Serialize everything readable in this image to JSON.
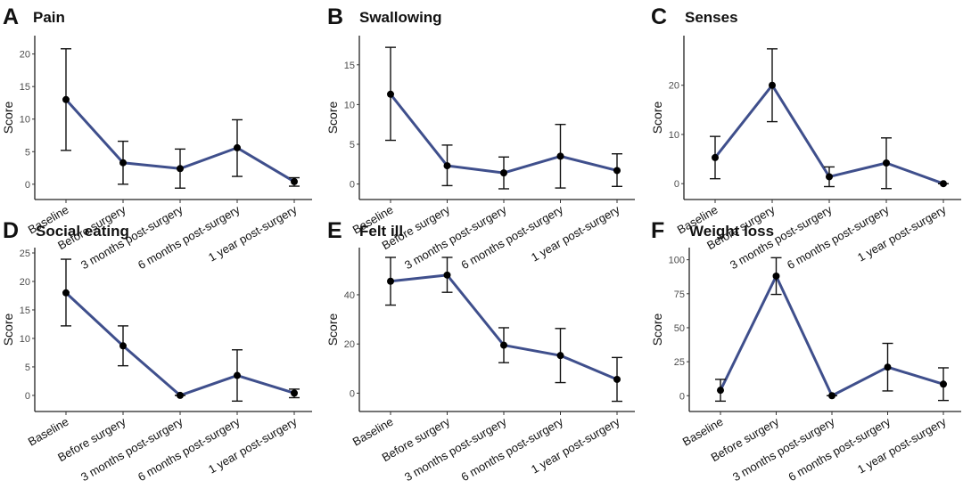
{
  "figure": {
    "line_color": "#3f4f8c",
    "point_color": "#000000",
    "errorbar_color": "#111111"
  },
  "chart_data": [
    {
      "type": "line",
      "panel": "A",
      "title": "Pain",
      "xlabel": "",
      "ylabel": "Score",
      "categories": [
        "Baseline",
        "Before surgery",
        "3 months post-surgery",
        "6 months post-surgery",
        "1 year post-surgery"
      ],
      "values": [
        13.0,
        3.3,
        2.4,
        5.6,
        0.4
      ],
      "error_low": [
        5.2,
        0.0,
        -0.6,
        1.2,
        -0.3
      ],
      "error_high": [
        20.8,
        6.6,
        5.4,
        9.9,
        1.0
      ],
      "yticks": [
        0,
        5,
        10,
        15,
        20
      ],
      "ylim": [
        -1.8,
        22
      ]
    },
    {
      "type": "line",
      "panel": "B",
      "title": "Swallowing",
      "xlabel": "",
      "ylabel": "Score",
      "categories": [
        "Baseline",
        "Before surgery",
        "3 months post-surgery",
        "6 months post-surgery",
        "1 year post-surgery"
      ],
      "values": [
        11.3,
        2.3,
        1.4,
        3.5,
        1.7
      ],
      "error_low": [
        5.5,
        -0.2,
        -0.6,
        -0.5,
        -0.3
      ],
      "error_high": [
        17.2,
        4.9,
        3.4,
        7.5,
        3.8
      ],
      "yticks": [
        0,
        5,
        10,
        15
      ],
      "ylim": [
        -1.5,
        18
      ]
    },
    {
      "type": "line",
      "panel": "C",
      "title": "Senses",
      "xlabel": "",
      "ylabel": "Score",
      "categories": [
        "Baseline",
        "Before surgery",
        "3 months post-surgery",
        "6 months post-surgery",
        "1 year post-surgery"
      ],
      "values": [
        5.3,
        20.0,
        1.4,
        4.2,
        0.0
      ],
      "error_low": [
        1.0,
        12.6,
        -0.6,
        -1.0,
        0.0
      ],
      "error_high": [
        9.6,
        27.4,
        3.4,
        9.3,
        0.0
      ],
      "yticks": [
        0,
        10,
        20
      ],
      "ylim": [
        -2.5,
        29
      ]
    },
    {
      "type": "line",
      "panel": "D",
      "title": "Social eating",
      "xlabel": "",
      "ylabel": "Score",
      "categories": [
        "Baseline",
        "Before surgery",
        "3 months post-surgery",
        "6 months post-surgery",
        "1 year post-surgery"
      ],
      "values": [
        18.0,
        8.7,
        0.0,
        3.5,
        0.4
      ],
      "error_low": [
        12.2,
        5.2,
        0.0,
        -1.0,
        -0.4
      ],
      "error_high": [
        23.9,
        12.2,
        0.0,
        8.0,
        1.1
      ],
      "yticks": [
        0,
        5,
        10,
        15,
        20,
        25
      ],
      "ylim": [
        -2.2,
        25
      ]
    },
    {
      "type": "line",
      "panel": "E",
      "title": "Felt ill",
      "xlabel": "",
      "ylabel": "Score",
      "categories": [
        "Baseline",
        "Before surgery",
        "3 months post-surgery",
        "6 months post-surgery",
        "1 year post-surgery"
      ],
      "values": [
        45.5,
        48.0,
        19.5,
        15.3,
        5.6
      ],
      "error_low": [
        35.8,
        41.0,
        12.4,
        4.3,
        -3.3
      ],
      "error_high": [
        55.2,
        55.2,
        26.6,
        26.3,
        14.5
      ],
      "yticks": [
        0,
        20,
        40
      ],
      "ylim": [
        -6,
        57
      ]
    },
    {
      "type": "line",
      "panel": "F",
      "title": "Weight loss",
      "xlabel": "",
      "ylabel": "Score",
      "categories": [
        "Baseline",
        "Before surgery",
        "3 months post-surgery",
        "6 months post-surgery",
        "1 year post-surgery"
      ],
      "values": [
        4.0,
        88.0,
        0.0,
        21.0,
        8.5
      ],
      "error_low": [
        -4.0,
        74.5,
        0.0,
        3.5,
        -3.5
      ],
      "error_high": [
        12.0,
        101.5,
        0.0,
        38.5,
        20.5
      ],
      "yticks": [
        0,
        25,
        50,
        75,
        100
      ],
      "ylim": [
        -9,
        105
      ]
    }
  ]
}
